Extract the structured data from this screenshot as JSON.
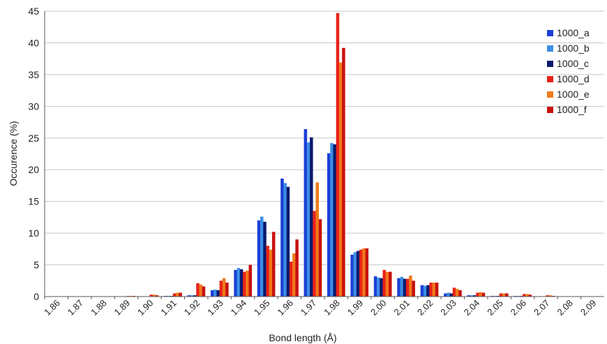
{
  "chart_data": {
    "type": "bar",
    "xlabel": "Bond length (Å)",
    "ylabel": "Occurence (%)",
    "ylim": [
      0,
      45
    ],
    "yticks": [
      "0",
      "5",
      "10",
      "15",
      "20",
      "25",
      "30",
      "35",
      "40",
      "45"
    ],
    "grid": "horizontal",
    "legend_position": "right",
    "categories": [
      "1.86",
      "1.87",
      "1.88",
      "1.89",
      "1.90",
      "1.91",
      "1.92",
      "1.93",
      "1.94",
      "1.95",
      "1.96",
      "1.97",
      "1.98",
      "1.99",
      "2.00",
      "2.01",
      "2.02",
      "2.03",
      "2.04",
      "2.05",
      "2.06",
      "2.07",
      "2.08",
      "2.09"
    ],
    "series": [
      {
        "name": "1000_a",
        "color": "#1c3fd6",
        "values": [
          0,
          0,
          0,
          0,
          0,
          0.1,
          0.2,
          1.0,
          4.2,
          12.0,
          18.6,
          26.4,
          22.6,
          6.6,
          3.2,
          2.9,
          1.8,
          0.5,
          0.2,
          0.1,
          0.1,
          0,
          0,
          0
        ]
      },
      {
        "name": "1000_b",
        "color": "#3a8ee6",
        "values": [
          0,
          0,
          0,
          0,
          0,
          0.1,
          0.2,
          1.1,
          4.5,
          12.6,
          17.9,
          24.3,
          24.2,
          7.0,
          3.0,
          3.1,
          1.7,
          0.6,
          0.2,
          0.1,
          0.1,
          0,
          0,
          0
        ]
      },
      {
        "name": "1000_c",
        "color": "#0a1a6e",
        "values": [
          0,
          0,
          0,
          0,
          0,
          0.1,
          0.2,
          1.0,
          4.3,
          11.8,
          17.3,
          25.1,
          24.0,
          7.2,
          2.9,
          2.8,
          1.8,
          0.5,
          0.2,
          0.1,
          0.1,
          0,
          0,
          0
        ]
      },
      {
        "name": "1000_d",
        "color": "#e8231a",
        "values": [
          0,
          0,
          0,
          0.1,
          0.3,
          0.5,
          2.1,
          2.5,
          3.9,
          8.0,
          5.5,
          13.5,
          44.7,
          7.4,
          4.2,
          2.8,
          2.2,
          1.4,
          0.6,
          0.5,
          0.4,
          0.2,
          0,
          0
        ]
      },
      {
        "name": "1000_e",
        "color": "#f07a1a",
        "values": [
          0,
          0,
          0,
          0.1,
          0.3,
          0.6,
          1.9,
          2.9,
          4.1,
          7.4,
          6.8,
          18.0,
          36.9,
          7.6,
          3.9,
          3.3,
          2.2,
          1.2,
          0.7,
          0.5,
          0.4,
          0.2,
          0,
          0
        ]
      },
      {
        "name": "1000_f",
        "color": "#c8120e",
        "values": [
          0,
          0,
          0,
          0.1,
          0.2,
          0.6,
          1.6,
          2.2,
          5.0,
          10.2,
          9.0,
          12.2,
          39.2,
          7.6,
          3.9,
          2.5,
          2.2,
          1.0,
          0.6,
          0.5,
          0.3,
          0.1,
          0,
          0
        ]
      }
    ]
  }
}
